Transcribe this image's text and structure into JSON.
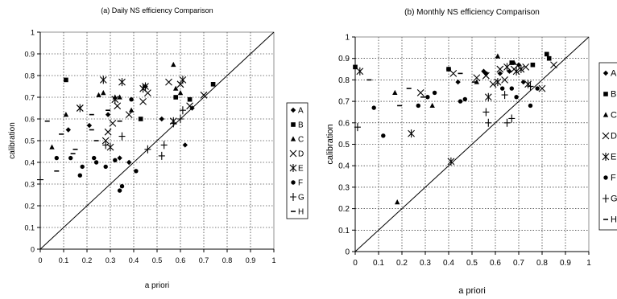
{
  "chart_data": [
    {
      "type": "scatter",
      "title": "(a) Daily NS efficiency Comparison",
      "xlabel": "a priori",
      "ylabel": "calibration",
      "xlim": [
        0,
        1
      ],
      "ylim": [
        0,
        1
      ],
      "xticks": [
        "0",
        "0.1",
        "0.2",
        "0.3",
        "0.4",
        "0.5",
        "0.6",
        "0.7",
        "0.8",
        "0.9",
        "1"
      ],
      "yticks": [
        "0",
        "0.1",
        "0.2",
        "0.3",
        "0.4",
        "0.5",
        "0.6",
        "0.7",
        "0.8",
        "0.9",
        "1"
      ],
      "grid": true,
      "reference_line": "y = x",
      "legend_position": "right",
      "series": [
        {
          "name": "A",
          "marker": "diamond",
          "points": [
            [
              0.12,
              0.55
            ],
            [
              0.21,
              0.57
            ],
            [
              0.29,
              0.62
            ],
            [
              0.34,
              0.42
            ],
            [
              0.38,
              0.4
            ],
            [
              0.45,
              0.75
            ],
            [
              0.52,
              0.6
            ],
            [
              0.62,
              0.48
            ],
            [
              0.65,
              0.65
            ]
          ]
        },
        {
          "name": "B",
          "marker": "square",
          "points": [
            [
              0.11,
              0.78
            ],
            [
              0.43,
              0.6
            ],
            [
              0.58,
              0.7
            ],
            [
              0.64,
              0.69
            ],
            [
              0.74,
              0.76
            ]
          ]
        },
        {
          "name": "C",
          "marker": "triangle",
          "points": [
            [
              0.05,
              0.47
            ],
            [
              0.11,
              0.62
            ],
            [
              0.25,
              0.71
            ],
            [
              0.27,
              0.72
            ],
            [
              0.32,
              0.7
            ],
            [
              0.34,
              0.7
            ],
            [
              0.39,
              0.64
            ],
            [
              0.57,
              0.85
            ],
            [
              0.58,
              0.74
            ],
            [
              0.6,
              0.72
            ]
          ]
        },
        {
          "name": "D",
          "marker": "x",
          "points": [
            [
              0.17,
              0.65
            ],
            [
              0.28,
              0.5
            ],
            [
              0.29,
              0.54
            ],
            [
              0.31,
              0.58
            ],
            [
              0.33,
              0.66
            ],
            [
              0.38,
              0.62
            ],
            [
              0.44,
              0.68
            ],
            [
              0.46,
              0.72
            ],
            [
              0.55,
              0.77
            ],
            [
              0.6,
              0.76
            ],
            [
              0.64,
              0.66
            ],
            [
              0.7,
              0.71
            ]
          ]
        },
        {
          "name": "E",
          "marker": "asterisk",
          "points": [
            [
              0.17,
              0.65
            ],
            [
              0.27,
              0.78
            ],
            [
              0.3,
              0.47
            ],
            [
              0.32,
              0.69
            ],
            [
              0.35,
              0.77
            ],
            [
              0.44,
              0.74
            ],
            [
              0.45,
              0.75
            ],
            [
              0.57,
              0.59
            ],
            [
              0.61,
              0.78
            ]
          ]
        },
        {
          "name": "F",
          "marker": "circle",
          "points": [
            [
              0.07,
              0.42
            ],
            [
              0.13,
              0.42
            ],
            [
              0.17,
              0.34
            ],
            [
              0.18,
              0.38
            ],
            [
              0.23,
              0.42
            ],
            [
              0.24,
              0.4
            ],
            [
              0.28,
              0.38
            ],
            [
              0.32,
              0.41
            ],
            [
              0.34,
              0.27
            ],
            [
              0.35,
              0.29
            ],
            [
              0.39,
              0.69
            ],
            [
              0.41,
              0.36
            ]
          ]
        },
        {
          "name": "G",
          "marker": "plus",
          "points": [
            [
              0.0,
              0.32
            ],
            [
              0.28,
              0.48
            ],
            [
              0.35,
              0.52
            ],
            [
              0.46,
              0.46
            ],
            [
              0.52,
              0.43
            ],
            [
              0.53,
              0.48
            ],
            [
              0.57,
              0.58
            ],
            [
              0.6,
              0.6
            ],
            [
              0.61,
              0.64
            ]
          ]
        },
        {
          "name": "H",
          "marker": "dash",
          "points": [
            [
              0.03,
              0.59
            ],
            [
              0.07,
              0.36
            ],
            [
              0.09,
              0.53
            ],
            [
              0.14,
              0.44
            ],
            [
              0.15,
              0.46
            ],
            [
              0.22,
              0.62
            ],
            [
              0.22,
              0.55
            ],
            [
              0.24,
              0.5
            ],
            [
              0.29,
              0.64
            ],
            [
              0.34,
              0.59
            ]
          ]
        }
      ]
    },
    {
      "type": "scatter",
      "title": "(b) Monthly NS efficiency Comparison",
      "xlabel": "a priori",
      "ylabel": "calibration",
      "xlim": [
        0,
        1
      ],
      "ylim": [
        0,
        1
      ],
      "xticks": [
        "0",
        "0.1",
        "0.2",
        "0.3",
        "0.4",
        "0.5",
        "0.6",
        "0.7",
        "0.8",
        "0.9",
        "1"
      ],
      "yticks": [
        "0",
        "0.1",
        "0.2",
        "0.3",
        "0.4",
        "0.5",
        "0.6",
        "0.7",
        "0.8",
        "0.9",
        "1"
      ],
      "grid": true,
      "reference_line": "y = x",
      "legend_position": "right",
      "series": [
        {
          "name": "A",
          "marker": "diamond",
          "points": [
            [
              0.4,
              0.85
            ],
            [
              0.44,
              0.79
            ],
            [
              0.55,
              0.84
            ],
            [
              0.62,
              0.83
            ],
            [
              0.66,
              0.84
            ],
            [
              0.7,
              0.87
            ],
            [
              0.72,
              0.79
            ]
          ]
        },
        {
          "name": "B",
          "marker": "square",
          "points": [
            [
              0.0,
              0.86
            ],
            [
              0.4,
              0.85
            ],
            [
              0.67,
              0.88
            ],
            [
              0.76,
              0.87
            ],
            [
              0.82,
              0.92
            ],
            [
              0.83,
              0.9
            ]
          ]
        },
        {
          "name": "C",
          "marker": "triangle",
          "points": [
            [
              0.17,
              0.74
            ],
            [
              0.18,
              0.23
            ],
            [
              0.33,
              0.68
            ],
            [
              0.52,
              0.79
            ],
            [
              0.61,
              0.91
            ],
            [
              0.68,
              0.88
            ]
          ]
        },
        {
          "name": "D",
          "marker": "x",
          "points": [
            [
              0.28,
              0.74
            ],
            [
              0.42,
              0.83
            ],
            [
              0.52,
              0.81
            ],
            [
              0.56,
              0.82
            ],
            [
              0.59,
              0.78
            ],
            [
              0.62,
              0.85
            ],
            [
              0.64,
              0.8
            ],
            [
              0.68,
              0.85
            ],
            [
              0.73,
              0.86
            ],
            [
              0.8,
              0.76
            ],
            [
              0.85,
              0.87
            ]
          ]
        },
        {
          "name": "E",
          "marker": "asterisk",
          "points": [
            [
              0.02,
              0.84
            ],
            [
              0.24,
              0.55
            ],
            [
              0.41,
              0.42
            ],
            [
              0.57,
              0.72
            ],
            [
              0.61,
              0.79
            ],
            [
              0.65,
              0.86
            ],
            [
              0.69,
              0.84
            ],
            [
              0.71,
              0.85
            ],
            [
              0.74,
              0.78
            ]
          ]
        },
        {
          "name": "F",
          "marker": "circle",
          "points": [
            [
              0.08,
              0.67
            ],
            [
              0.12,
              0.54
            ],
            [
              0.27,
              0.68
            ],
            [
              0.31,
              0.72
            ],
            [
              0.34,
              0.74
            ],
            [
              0.45,
              0.7
            ],
            [
              0.47,
              0.71
            ],
            [
              0.56,
              0.83
            ],
            [
              0.63,
              0.76
            ],
            [
              0.67,
              0.76
            ],
            [
              0.69,
              0.72
            ],
            [
              0.75,
              0.68
            ],
            [
              0.78,
              0.76
            ]
          ]
        },
        {
          "name": "G",
          "marker": "plus",
          "points": [
            [
              0.01,
              0.58
            ],
            [
              0.56,
              0.65
            ],
            [
              0.57,
              0.6
            ],
            [
              0.64,
              0.73
            ],
            [
              0.65,
              0.6
            ],
            [
              0.67,
              0.62
            ],
            [
              0.75,
              0.77
            ]
          ]
        },
        {
          "name": "H",
          "marker": "dash",
          "points": [
            [
              0.06,
              0.8
            ],
            [
              0.19,
              0.68
            ],
            [
              0.23,
              0.76
            ],
            [
              0.29,
              0.72
            ],
            [
              0.45,
              0.83
            ],
            [
              0.51,
              0.79
            ]
          ]
        }
      ]
    }
  ]
}
